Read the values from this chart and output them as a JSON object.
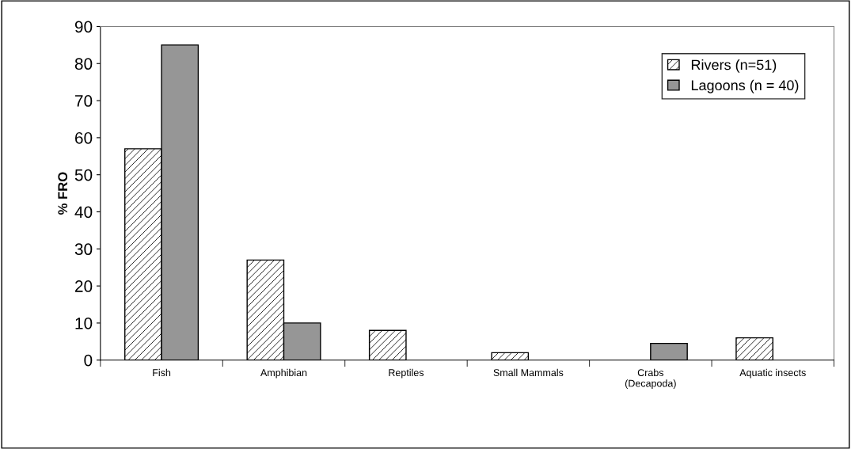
{
  "chart_data": {
    "type": "bar",
    "ylabel": "% FRO",
    "categories": [
      "Fish",
      "Amphibian",
      "Reptiles",
      "Small Mammals",
      "Crabs\n(Decapoda)",
      "Aquatic insects"
    ],
    "series": [
      {
        "name": "Rivers (n=51)",
        "color": "#000000",
        "values": [
          57,
          27,
          8,
          2,
          null,
          6
        ]
      },
      {
        "name": "Lagoons (n = 40)",
        "color": "#969696",
        "values": [
          85,
          10,
          null,
          null,
          4.5,
          null
        ]
      }
    ],
    "ylim": [
      0,
      90
    ],
    "yticks": [
      0,
      10,
      20,
      30,
      40,
      50,
      60,
      70,
      80,
      90
    ],
    "grid": false,
    "legend": "top right"
  }
}
